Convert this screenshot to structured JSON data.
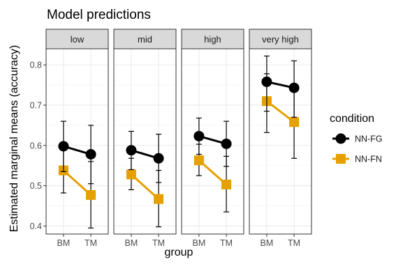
{
  "chart_data": {
    "type": "line",
    "title": "Model predictions",
    "xlabel": "group",
    "ylabel": "Estimated marginal means (accuracy)",
    "categories": [
      "BM",
      "TM"
    ],
    "ylim": [
      0.38,
      0.84
    ],
    "yticks": [
      0.4,
      0.5,
      0.6,
      0.7,
      0.8
    ],
    "ytick_labels": [
      "0.4",
      "0.5",
      "0.6",
      "0.7",
      "0.8"
    ],
    "grid": true,
    "legend": {
      "title": "condition",
      "position": "right"
    },
    "facets": [
      {
        "label": "low",
        "series": [
          {
            "name": "NN-FG",
            "values": [
              0.598,
              0.578
            ],
            "lower": [
              0.535,
              0.505
            ],
            "upper": [
              0.66,
              0.65
            ]
          },
          {
            "name": "NN-FN",
            "values": [
              0.538,
              0.477
            ],
            "lower": [
              0.482,
              0.395
            ],
            "upper": [
              0.598,
              0.56
            ]
          }
        ]
      },
      {
        "label": "mid",
        "series": [
          {
            "name": "NN-FG",
            "values": [
              0.588,
              0.568
            ],
            "lower": [
              0.54,
              0.508
            ],
            "upper": [
              0.635,
              0.628
            ]
          },
          {
            "name": "NN-FN",
            "values": [
              0.528,
              0.467
            ],
            "lower": [
              0.49,
              0.398
            ],
            "upper": [
              0.568,
              0.538
            ]
          }
        ]
      },
      {
        "label": "high",
        "series": [
          {
            "name": "NN-FG",
            "values": [
              0.623,
              0.604
            ],
            "lower": [
              0.578,
              0.548
            ],
            "upper": [
              0.668,
              0.66
            ]
          },
          {
            "name": "NN-FN",
            "values": [
              0.563,
              0.503
            ],
            "lower": [
              0.525,
              0.435
            ],
            "upper": [
              0.603,
              0.573
            ]
          }
        ]
      },
      {
        "label": "very high",
        "series": [
          {
            "name": "NN-FG",
            "values": [
              0.758,
              0.743
            ],
            "lower": [
              0.685,
              0.67
            ],
            "upper": [
              0.822,
              0.81
            ]
          },
          {
            "name": "NN-FN",
            "values": [
              0.71,
              0.658
            ],
            "lower": [
              0.632,
              0.568
            ],
            "upper": [
              0.778,
              0.74
            ]
          }
        ]
      }
    ],
    "colors": {
      "NN-FG": "#000000",
      "NN-FN": "#E6A000"
    }
  }
}
